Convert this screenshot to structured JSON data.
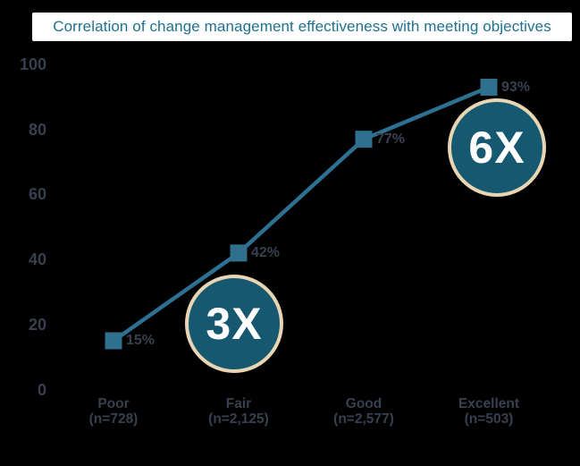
{
  "title": "Correlation of change management effectiveness with meeting objectives",
  "colors": {
    "background": "#000000",
    "title_box_bg": "#ffffff",
    "title_text": "#1f7191",
    "line": "#2d7092",
    "marker": "#2f708f",
    "axis_text": "#37404e",
    "value_label_text": "#37404e",
    "badge_fill": "#15586f",
    "badge_border": "#e8d5b3",
    "badge_text": "#ffffff"
  },
  "chart_data": {
    "type": "line",
    "title": "Correlation of change management effectiveness with meeting objectives",
    "categories": [
      "Poor",
      "Fair",
      "Good",
      "Excellent"
    ],
    "category_sublabels": [
      "(n=728)",
      "(n=2,125)",
      "(n=2,577)",
      "(n=503)"
    ],
    "values": [
      15,
      42,
      77,
      93
    ],
    "value_labels": [
      "15%",
      "42%",
      "77%",
      "93%"
    ],
    "yticks": [
      100,
      80,
      60,
      40,
      20,
      0
    ],
    "ylim": [
      0,
      100
    ],
    "grid": false,
    "legend": false,
    "marker_shape": "square",
    "annotations": [
      {
        "label": "3X",
        "near_category": "Fair"
      },
      {
        "label": "6X",
        "near_category": "Excellent"
      }
    ]
  }
}
